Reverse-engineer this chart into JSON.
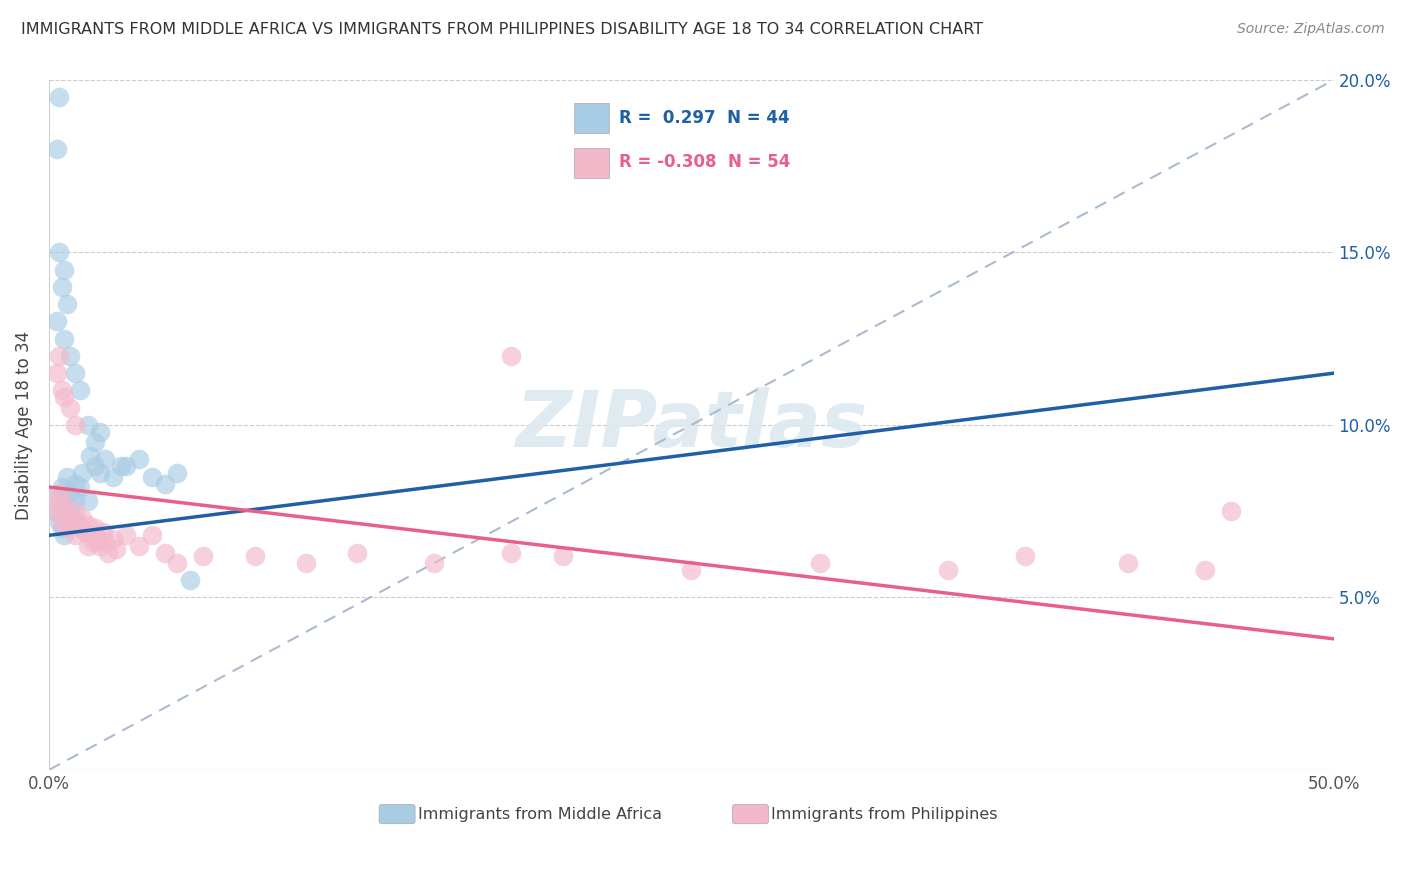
{
  "title": "IMMIGRANTS FROM MIDDLE AFRICA VS IMMIGRANTS FROM PHILIPPINES DISABILITY AGE 18 TO 34 CORRELATION CHART",
  "source": "Source: ZipAtlas.com",
  "ylabel": "Disability Age 18 to 34",
  "xlim": [
    0.0,
    0.5
  ],
  "ylim": [
    0.0,
    0.2
  ],
  "xticks": [
    0.0,
    0.1,
    0.2,
    0.3,
    0.4,
    0.5
  ],
  "xticklabels": [
    "0.0%",
    "",
    "",
    "",
    "",
    "50.0%"
  ],
  "yticks": [
    0.0,
    0.05,
    0.1,
    0.15,
    0.2
  ],
  "yticklabels_right": [
    "",
    "5.0%",
    "10.0%",
    "15.0%",
    "20.0%"
  ],
  "r_blue": 0.297,
  "n_blue": 44,
  "r_pink": -0.308,
  "n_pink": 54,
  "legend_label_blue": "Immigrants from Middle Africa",
  "legend_label_pink": "Immigrants from Philippines",
  "watermark": "ZIPatlas",
  "blue_color": "#a8cce4",
  "pink_color": "#f4b8cb",
  "blue_line_color": "#1f5fa6",
  "pink_line_color": "#e8608a",
  "blue_scatter": [
    [
      0.002,
      0.075
    ],
    [
      0.003,
      0.08
    ],
    [
      0.004,
      0.072
    ],
    [
      0.005,
      0.082
    ],
    [
      0.005,
      0.07
    ],
    [
      0.006,
      0.068
    ],
    [
      0.006,
      0.078
    ],
    [
      0.007,
      0.074
    ],
    [
      0.007,
      0.085
    ],
    [
      0.008,
      0.076
    ],
    [
      0.008,
      0.08
    ],
    [
      0.009,
      0.073
    ],
    [
      0.01,
      0.078
    ],
    [
      0.01,
      0.083
    ],
    [
      0.011,
      0.071
    ],
    [
      0.012,
      0.082
    ],
    [
      0.013,
      0.086
    ],
    [
      0.015,
      0.078
    ],
    [
      0.016,
      0.091
    ],
    [
      0.018,
      0.088
    ],
    [
      0.02,
      0.086
    ],
    [
      0.022,
      0.09
    ],
    [
      0.025,
      0.085
    ],
    [
      0.028,
      0.088
    ],
    [
      0.003,
      0.13
    ],
    [
      0.005,
      0.14
    ],
    [
      0.006,
      0.125
    ],
    [
      0.004,
      0.15
    ],
    [
      0.006,
      0.145
    ],
    [
      0.007,
      0.135
    ],
    [
      0.003,
      0.18
    ],
    [
      0.004,
      0.195
    ],
    [
      0.008,
      0.12
    ],
    [
      0.01,
      0.115
    ],
    [
      0.012,
      0.11
    ],
    [
      0.015,
      0.1
    ],
    [
      0.018,
      0.095
    ],
    [
      0.02,
      0.098
    ],
    [
      0.03,
      0.088
    ],
    [
      0.035,
      0.09
    ],
    [
      0.04,
      0.085
    ],
    [
      0.045,
      0.083
    ],
    [
      0.05,
      0.086
    ],
    [
      0.055,
      0.055
    ]
  ],
  "pink_scatter": [
    [
      0.002,
      0.078
    ],
    [
      0.003,
      0.075
    ],
    [
      0.004,
      0.08
    ],
    [
      0.005,
      0.076
    ],
    [
      0.005,
      0.072
    ],
    [
      0.006,
      0.077
    ],
    [
      0.007,
      0.074
    ],
    [
      0.007,
      0.07
    ],
    [
      0.008,
      0.073
    ],
    [
      0.009,
      0.071
    ],
    [
      0.01,
      0.075
    ],
    [
      0.01,
      0.068
    ],
    [
      0.011,
      0.072
    ],
    [
      0.012,
      0.07
    ],
    [
      0.013,
      0.073
    ],
    [
      0.014,
      0.069
    ],
    [
      0.015,
      0.071
    ],
    [
      0.015,
      0.065
    ],
    [
      0.016,
      0.068
    ],
    [
      0.017,
      0.066
    ],
    [
      0.018,
      0.07
    ],
    [
      0.019,
      0.067
    ],
    [
      0.02,
      0.065
    ],
    [
      0.021,
      0.069
    ],
    [
      0.022,
      0.066
    ],
    [
      0.023,
      0.063
    ],
    [
      0.025,
      0.067
    ],
    [
      0.026,
      0.064
    ],
    [
      0.003,
      0.115
    ],
    [
      0.005,
      0.11
    ],
    [
      0.006,
      0.108
    ],
    [
      0.008,
      0.105
    ],
    [
      0.01,
      0.1
    ],
    [
      0.004,
      0.12
    ],
    [
      0.03,
      0.068
    ],
    [
      0.035,
      0.065
    ],
    [
      0.04,
      0.068
    ],
    [
      0.045,
      0.063
    ],
    [
      0.05,
      0.06
    ],
    [
      0.06,
      0.062
    ],
    [
      0.08,
      0.062
    ],
    [
      0.1,
      0.06
    ],
    [
      0.12,
      0.063
    ],
    [
      0.15,
      0.06
    ],
    [
      0.18,
      0.063
    ],
    [
      0.2,
      0.062
    ],
    [
      0.25,
      0.058
    ],
    [
      0.3,
      0.06
    ],
    [
      0.35,
      0.058
    ],
    [
      0.38,
      0.062
    ],
    [
      0.42,
      0.06
    ],
    [
      0.45,
      0.058
    ],
    [
      0.18,
      0.12
    ],
    [
      0.46,
      0.075
    ]
  ],
  "blue_trend": [
    0.0,
    0.068,
    0.5,
    0.115
  ],
  "pink_trend": [
    0.0,
    0.082,
    0.5,
    0.038
  ],
  "ref_line": [
    0.0,
    0.0,
    0.5,
    0.2
  ]
}
